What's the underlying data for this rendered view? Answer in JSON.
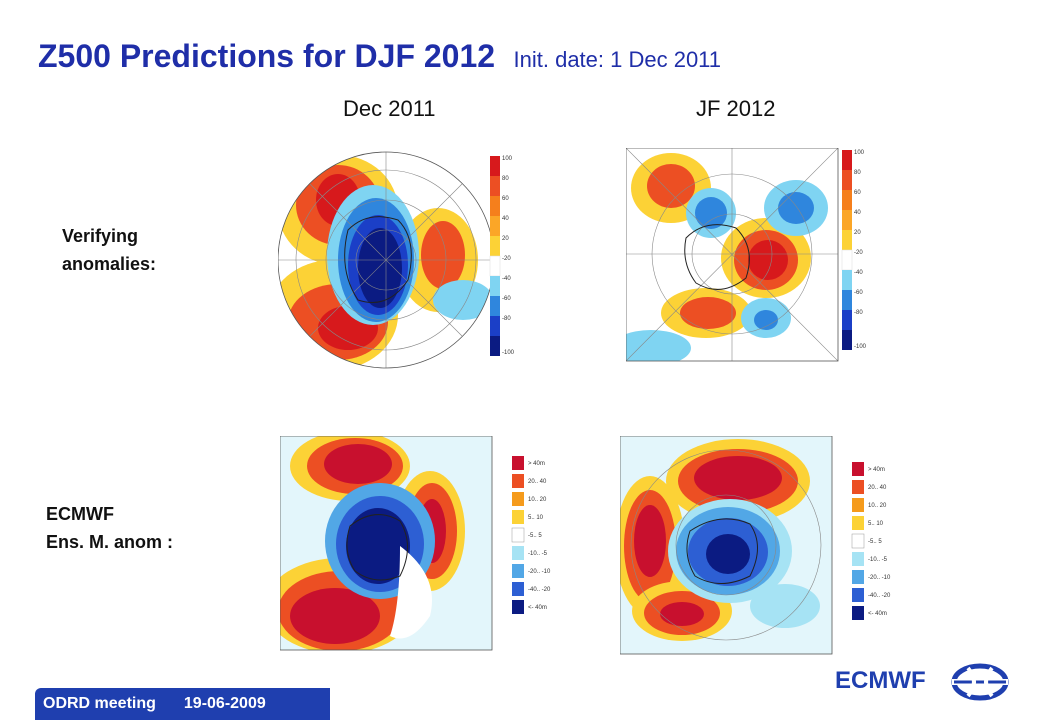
{
  "title": {
    "main": "Z500 Predictions for DJF 2012",
    "init_date": "Init. date: 1 Dec 2011"
  },
  "columns": [
    "Dec 2011",
    "JF 2012"
  ],
  "rows": {
    "verifying": [
      "Verifying",
      "anomalies:"
    ],
    "ecmwf": [
      "ECMWF",
      "Ens. M. anom :"
    ]
  },
  "colorbar_top": {
    "labels": [
      "100",
      "80",
      "60",
      "40",
      "20",
      "-20",
      "-40",
      "-60",
      "-80",
      "-100"
    ],
    "colors": [
      "#d7191c",
      "#ec4f23",
      "#f57f1c",
      "#fba627",
      "#fcd236",
      "#ffffff",
      "#7fd4f2",
      "#2f86dd",
      "#1b3fc7",
      "#0b1b82"
    ]
  },
  "colorbar_bottom": {
    "labels": [
      "> 40m",
      "20.. 40",
      "10.. 20",
      "5.. 10",
      "-5.. 5",
      "-10.. -5",
      "-20.. -10",
      "-40.. -20",
      "<- 40m"
    ],
    "colors": [
      "#c8102e",
      "#ec4f23",
      "#f59b1c",
      "#fcd236",
      "#ffffff",
      "#a6e3f4",
      "#52a7e6",
      "#2d5fd3",
      "#0b1b82"
    ]
  },
  "footer": {
    "meeting": "ODRD meeting",
    "date": "19-06-2009"
  },
  "brand": "ECMWF"
}
